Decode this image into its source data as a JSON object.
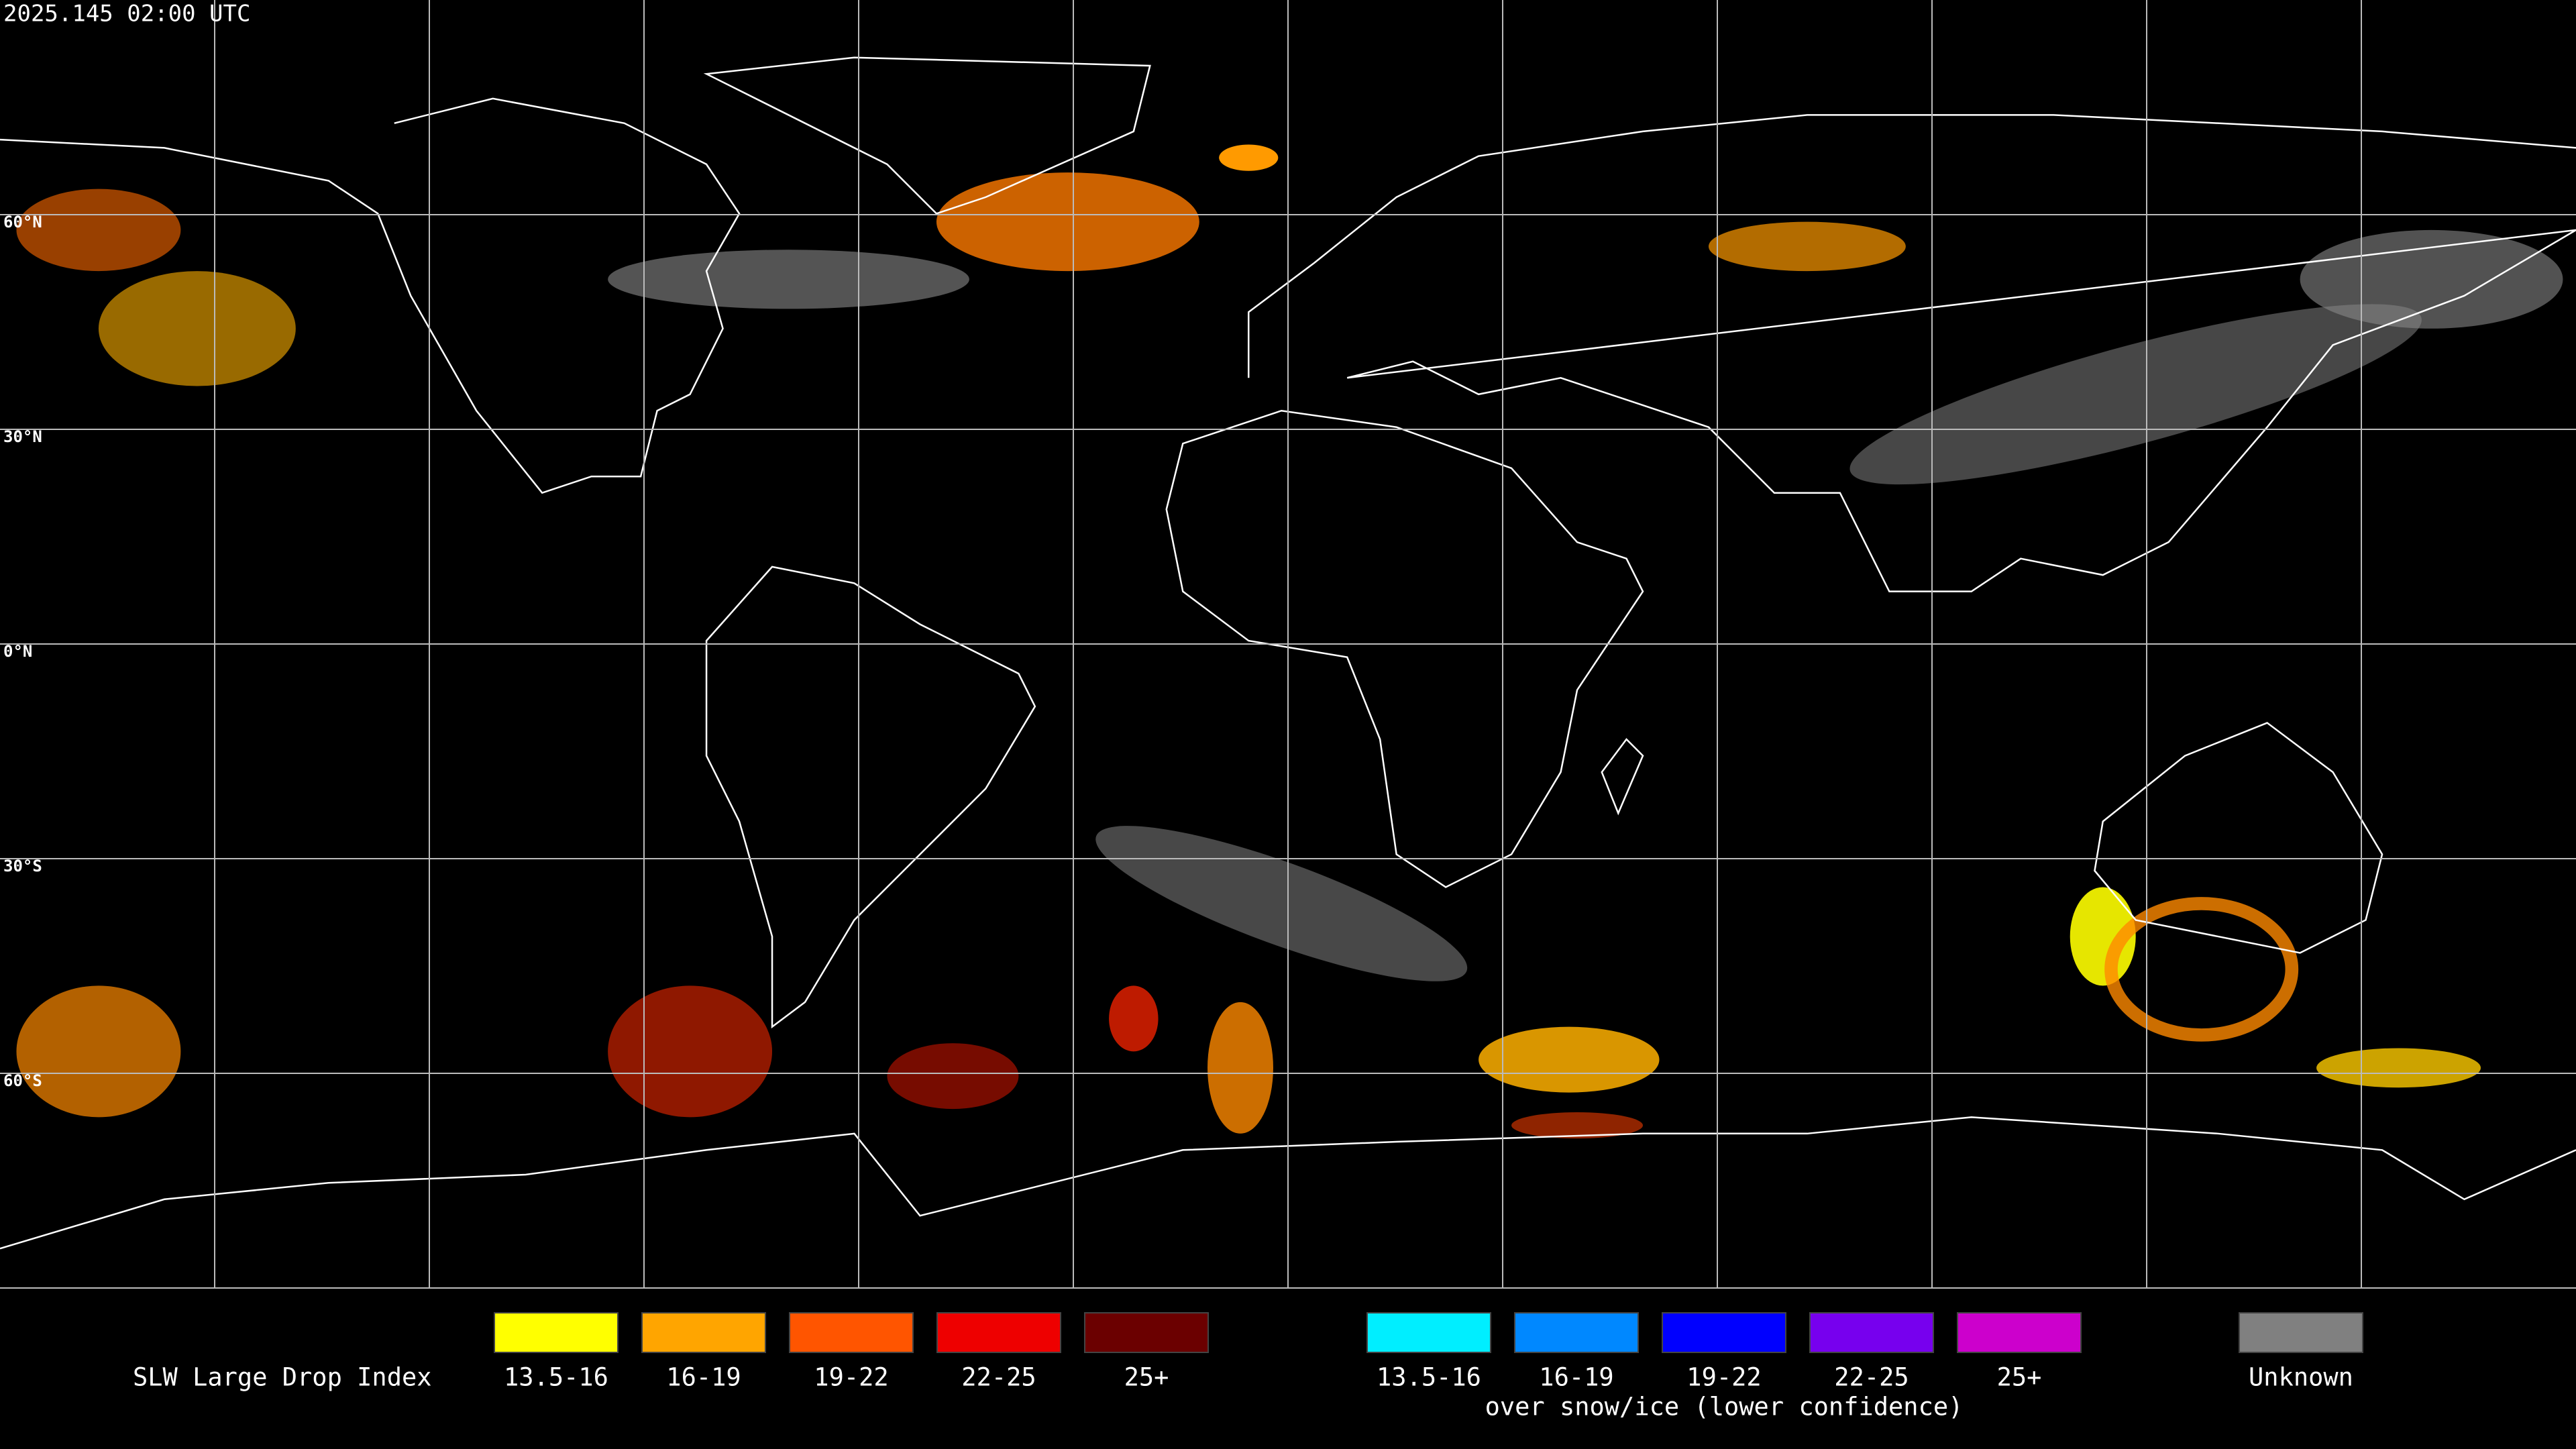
{
  "timestamp": "2025.145 02:00 UTC",
  "latitude_labels": [
    "60°N",
    "30°N",
    "0°N",
    "30°S",
    "60°S"
  ],
  "legend": {
    "title": "SLW Large Drop Index",
    "groups": [
      {
        "items": [
          {
            "label": "13.5-16",
            "color": "#ffff00"
          },
          {
            "label": "16-19",
            "color": "#ffa500"
          },
          {
            "label": "19-22",
            "color": "#ff5500"
          },
          {
            "label": "22-25",
            "color": "#ee0000"
          },
          {
            "label": "25+",
            "color": "#6b0000"
          }
        ]
      },
      {
        "items": [
          {
            "label": "13.5-16",
            "color": "#00eeff"
          },
          {
            "label": "16-19",
            "color": "#0088ff"
          },
          {
            "label": "19-22",
            "color": "#0000ff"
          },
          {
            "label": "22-25",
            "color": "#7700ee"
          },
          {
            "label": "25+",
            "color": "#cc00cc"
          }
        ],
        "caption": "over snow/ice (lower confidence)"
      }
    ],
    "unknown": {
      "label": "Unknown",
      "color": "#808080"
    }
  }
}
